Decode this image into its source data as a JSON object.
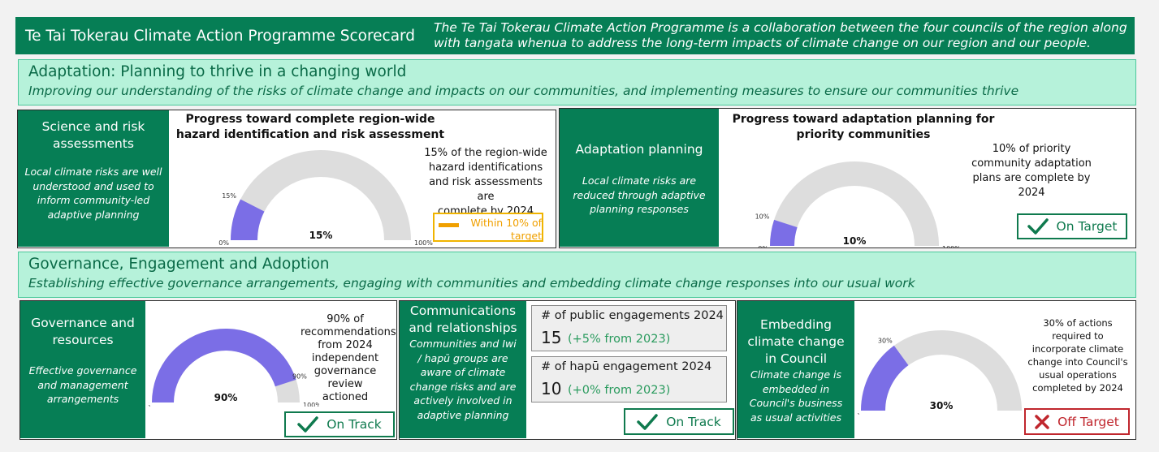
{
  "header": {
    "title": "Te Tai Tokerau Climate Action Programme Scorecard",
    "description_line1": "The Te Tai Tokerau Climate Action Programme is a collaboration between the four councils of the region along",
    "description_line2": "with tangata whenua to address the long-term impacts of climate change on our region and our people."
  },
  "colors": {
    "header_green": "#067e55",
    "section_mint": "#b6f2da",
    "gauge_fill": "#7b6ee6",
    "gauge_track": "#dddddd",
    "on_track": "#0f7a4e",
    "off_target": "#c0262d",
    "amber": "#f0a000"
  },
  "adaptation": {
    "title": "Adaptation: Planning to thrive in a changing world",
    "subtitle": "Improving our understanding of the risks of climate change and impacts on our communities, and implementing measures to ensure our communities thrive",
    "science": {
      "heading_line1": "Science and risk",
      "heading_line2": "assessments",
      "desc_lines": [
        "Local climate risks are well",
        "understood and used to",
        "inform community-led",
        "adaptive planning"
      ],
      "gauge_title_line1": "Progress toward complete region-wide",
      "gauge_title_line2": "hazard identification and risk assessment",
      "gauge": {
        "value": 15,
        "value_label": "15%",
        "min_label": "0%",
        "max_label": "100%",
        "mark_label": "15%"
      },
      "desc": [
        "15% of the region-wide",
        "hazard identifications",
        "and risk assessments are",
        "complete by 2024"
      ],
      "status_line1": "Within 10% of",
      "status_line2": "target",
      "status_icon": "dash-icon"
    },
    "planning": {
      "heading": "Adaptation planning",
      "desc_lines": [
        "Local climate risks are",
        "reduced through adaptive",
        "planning responses"
      ],
      "gauge_title_line1": "Progress toward adaptation planning for",
      "gauge_title_line2": "priority communities",
      "gauge": {
        "value": 10,
        "value_label": "10%",
        "min_label": "0%",
        "max_label": "100%",
        "mark_label": "10%"
      },
      "desc": [
        "10% of priority",
        "community adaptation",
        "plans are complete by",
        "2024"
      ],
      "status": "On Target",
      "status_icon": "checkmark-icon"
    }
  },
  "governance": {
    "title": "Governance, Engagement and Adoption",
    "subtitle": "Establishing effective governance arrangements, engaging with communities and embedding climate change responses into our usual work",
    "resources": {
      "heading_line1": "Governance and",
      "heading_line2": "resources",
      "desc_lines": [
        "Effective governance",
        "and management",
        "arrangements"
      ],
      "gauge": {
        "value": 90,
        "value_label": "90%",
        "min_label": "0%",
        "max_label": "100%",
        "mark_label": "90%"
      },
      "desc": [
        "90% of",
        "recommendations",
        "from 2024",
        "independent",
        "governance review",
        "actioned"
      ],
      "status": "On Track",
      "status_icon": "checkmark-icon"
    },
    "communications": {
      "heading_line1": "Communications",
      "heading_line2": "and relationships",
      "desc_lines": [
        "Communities and Iwi",
        "/ hapū groups are",
        "aware of climate",
        "change risks and are",
        "actively involved in",
        "adaptive planning"
      ],
      "metrics": [
        {
          "label": "# of public engagements 2024",
          "value": "15",
          "change": "(+5% from 2023)"
        },
        {
          "label": "# of hapū engagement 2024",
          "value": "10",
          "change": "(+0% from 2023)"
        }
      ],
      "status": "On Track",
      "status_icon": "checkmark-icon"
    },
    "embedding": {
      "heading_line1": "Embedding",
      "heading_line2": "climate change",
      "heading_line3": "in Council",
      "desc_lines": [
        "Climate change is",
        "embedded in",
        "Council's business",
        "as usual activities"
      ],
      "gauge": {
        "value": 30,
        "value_label": "30%",
        "min_label": "0%",
        "max_label": "100%",
        "mark_label": "30%"
      },
      "desc": [
        "30% of actions",
        "required to",
        "incorporate climate",
        "change into Council's",
        "usual operations",
        "completed by 2024"
      ],
      "status": "Off Target",
      "status_icon": "cross-icon"
    }
  }
}
